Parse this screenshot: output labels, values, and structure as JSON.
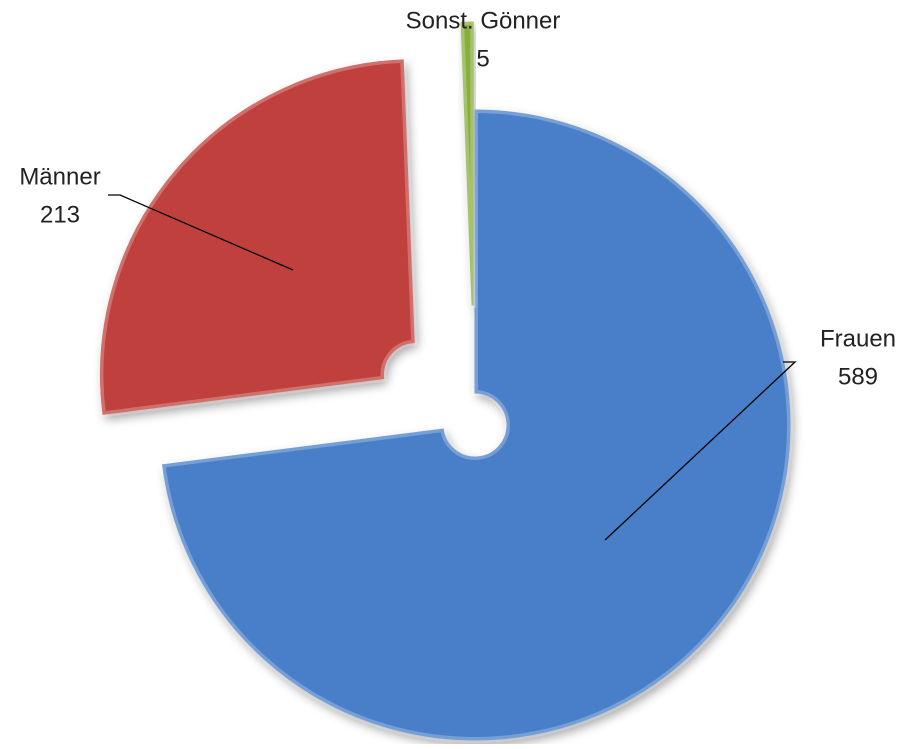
{
  "chart_data": {
    "type": "pie",
    "categories": [
      "Frauen",
      "Männer",
      "Sonst. Gönner"
    ],
    "values": [
      589,
      213,
      5
    ],
    "colors": [
      "#4a7fc8",
      "#c0413c",
      "#8aae3e"
    ]
  }
}
